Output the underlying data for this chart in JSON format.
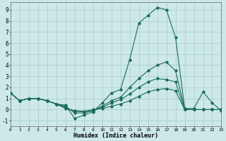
{
  "xlabel": "Humidex (Indice chaleur)",
  "background_color": "#cce8e8",
  "grid_color": "#aacccc",
  "line_color": "#1a6b5a",
  "xlim": [
    0,
    23
  ],
  "ylim": [
    -1.5,
    9.7
  ],
  "xticks": [
    0,
    1,
    2,
    3,
    4,
    5,
    6,
    7,
    8,
    9,
    10,
    11,
    12,
    13,
    14,
    15,
    16,
    17,
    18,
    19,
    20,
    21,
    22,
    23
  ],
  "yticks": [
    -1,
    0,
    1,
    2,
    3,
    4,
    5,
    6,
    7,
    8,
    9
  ],
  "lines": [
    [
      1.5,
      0.8,
      1.0,
      1.0,
      0.8,
      0.5,
      0.4,
      -0.8,
      -0.5,
      -0.2,
      0.6,
      1.5,
      1.8,
      4.5,
      7.8,
      8.5,
      9.2,
      9.0,
      6.5,
      0.1,
      0.1,
      1.6,
      0.6,
      -0.1
    ],
    [
      1.5,
      0.8,
      1.0,
      1.0,
      0.8,
      0.5,
      0.3,
      -0.3,
      -0.3,
      -0.1,
      0.3,
      0.8,
      1.1,
      2.0,
      2.8,
      3.5,
      4.0,
      4.3,
      3.5,
      0.05,
      0.0,
      0.0,
      0.0,
      0.0
    ],
    [
      1.5,
      0.8,
      1.0,
      1.0,
      0.8,
      0.5,
      0.2,
      -0.15,
      -0.2,
      -0.1,
      0.2,
      0.6,
      0.9,
      1.4,
      2.0,
      2.5,
      2.8,
      2.7,
      2.5,
      0.0,
      0.0,
      0.0,
      0.0,
      0.0
    ],
    [
      1.5,
      0.8,
      1.0,
      1.0,
      0.8,
      0.5,
      0.1,
      -0.1,
      -0.15,
      0.0,
      0.1,
      0.3,
      0.5,
      0.8,
      1.2,
      1.6,
      1.8,
      1.9,
      1.7,
      0.0,
      0.0,
      0.0,
      0.0,
      0.0
    ]
  ]
}
